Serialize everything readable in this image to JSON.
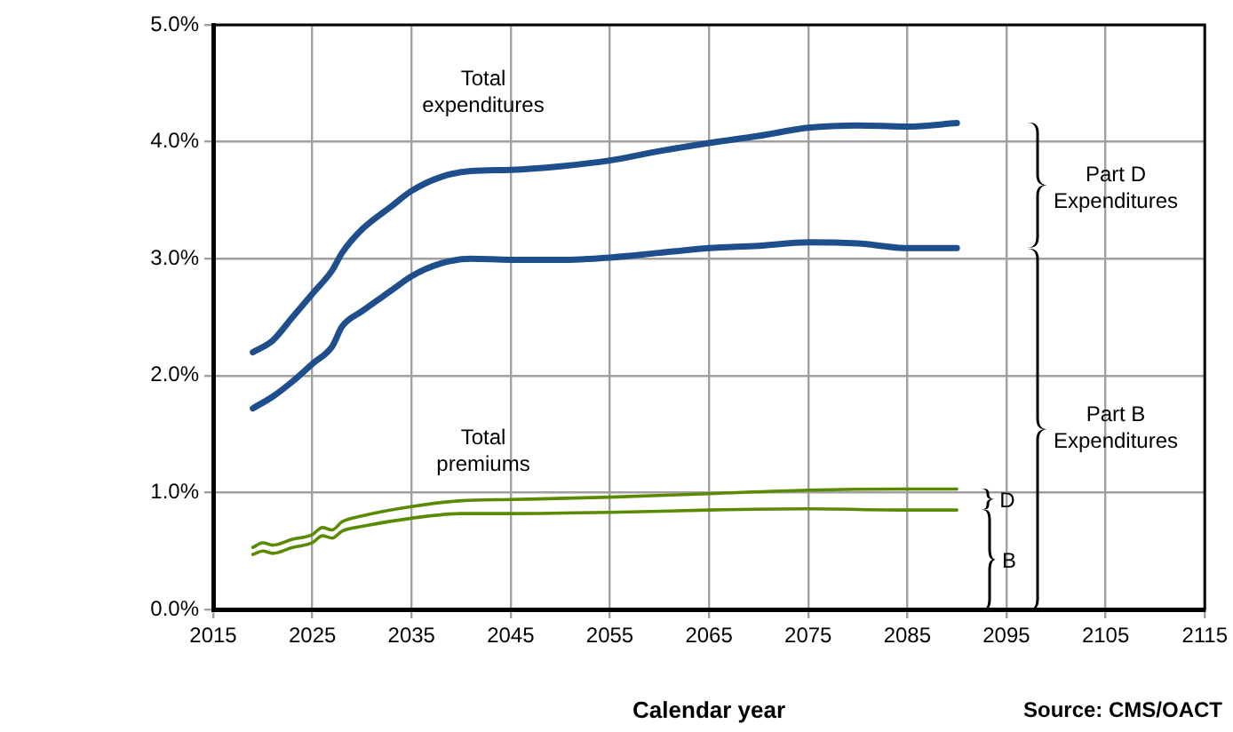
{
  "chart_data": {
    "type": "line",
    "xlabel": "Calendar year",
    "xlim": [
      2015,
      2115
    ],
    "xticks": [
      2015,
      2025,
      2035,
      2045,
      2055,
      2065,
      2075,
      2085,
      2095,
      2105,
      2115
    ],
    "ylim": [
      0,
      5
    ],
    "yticks": [
      {
        "value": 0,
        "label": "0.0%"
      },
      {
        "value": 1,
        "label": "1.0%"
      },
      {
        "value": 2,
        "label": "2.0%"
      },
      {
        "value": 3,
        "label": "3.0%"
      },
      {
        "value": 4,
        "label": "4.0%"
      },
      {
        "value": 5,
        "label": "5.0%"
      }
    ],
    "grid": true,
    "legend": false,
    "series": [
      {
        "color": "#1f4e8c",
        "x": [
          2019,
          2021,
          2023,
          2025,
          2027,
          2028,
          2030,
          2033,
          2035,
          2038,
          2041,
          2045,
          2050,
          2055,
          2060,
          2065,
          2070,
          2075,
          2080,
          2085,
          2090
        ],
        "values": [
          2.2,
          2.3,
          2.5,
          2.7,
          2.9,
          3.05,
          3.25,
          3.45,
          3.58,
          3.7,
          3.75,
          3.76,
          3.79,
          3.84,
          3.92,
          3.99,
          4.05,
          4.12,
          4.14,
          4.13,
          4.16
        ]
      },
      {
        "color": "#1f4e8c",
        "x": [
          2019,
          2021,
          2023,
          2025,
          2027,
          2028,
          2030,
          2033,
          2035,
          2038,
          2041,
          2045,
          2050,
          2055,
          2060,
          2065,
          2070,
          2075,
          2080,
          2085,
          2090
        ],
        "values": [
          1.72,
          1.82,
          1.95,
          2.1,
          2.25,
          2.42,
          2.55,
          2.73,
          2.85,
          2.96,
          3.0,
          2.99,
          2.99,
          3.01,
          3.05,
          3.09,
          3.11,
          3.14,
          3.13,
          3.09,
          3.09
        ]
      },
      {
        "color": "#5a8a00",
        "x": [
          2019,
          2020,
          2021,
          2023,
          2025,
          2026,
          2027,
          2028,
          2030,
          2035,
          2040,
          2045,
          2055,
          2065,
          2075,
          2085,
          2090
        ],
        "values": [
          0.53,
          0.57,
          0.55,
          0.6,
          0.64,
          0.7,
          0.68,
          0.75,
          0.8,
          0.88,
          0.93,
          0.94,
          0.96,
          0.99,
          1.02,
          1.03,
          1.03
        ]
      },
      {
        "color": "#5a8a00",
        "x": [
          2019,
          2020,
          2021,
          2023,
          2025,
          2026,
          2027,
          2028,
          2030,
          2035,
          2040,
          2045,
          2055,
          2065,
          2075,
          2085,
          2090
        ],
        "values": [
          0.47,
          0.5,
          0.48,
          0.53,
          0.57,
          0.63,
          0.61,
          0.67,
          0.71,
          0.78,
          0.82,
          0.82,
          0.83,
          0.85,
          0.86,
          0.85,
          0.85
        ]
      }
    ],
    "annotations": [
      "Total\nexpenditures",
      "Total\npremiums",
      "Part D\nExpenditures",
      "Part B\nExpenditures",
      "D",
      "B",
      "Source: CMS/OACT"
    ]
  }
}
